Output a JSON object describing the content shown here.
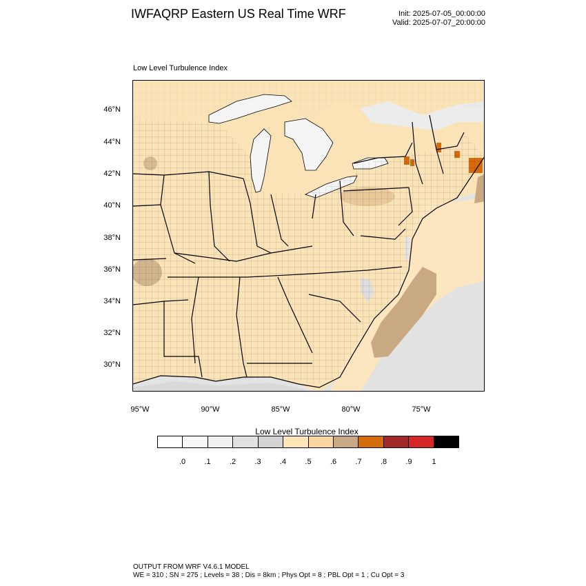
{
  "header": {
    "title": "IWFAQRP Eastern US Real Time WRF",
    "init": "Init: 2025-07-05_00:00:00",
    "valid": "Valid: 2025-07-07_20:00:00"
  },
  "map": {
    "label": "Low Level Turbulence Index",
    "lat_labels": [
      "46°N",
      "44°N",
      "42°N",
      "40°N",
      "38°N",
      "36°N",
      "34°N",
      "32°N",
      "30°N"
    ],
    "lon_labels": [
      "95°W",
      "90°W",
      "85°W",
      "80°W",
      "75°W"
    ],
    "colors": {
      "land": "#fbe3b8",
      "water_low": "#f5f5f5",
      "ocean": "#e0e0e0",
      "mid": "#c8a982",
      "high": "#d76a0a",
      "border": "#000000"
    }
  },
  "colorbar": {
    "title": "Low Level Turbulence Index",
    "labels": [
      ".0",
      ".1",
      ".2",
      ".3",
      ".4",
      ".5",
      ".6",
      ".7",
      ".8",
      ".9",
      "1"
    ],
    "colors": [
      "#ffffff",
      "#f8f8f8",
      "#f0f0f0",
      "#e1e1e1",
      "#d3d3d3",
      "#ffe5b7",
      "#fbd6a2",
      "#c9a985",
      "#d56c0a",
      "#a32a2a",
      "#d62728",
      "#000000"
    ]
  },
  "footer": {
    "line1": "OUTPUT FROM WRF V4.6.1 MODEL",
    "line2": "WE = 310 ; SN = 275 ; Levels = 38 ; Dis = 8km ; Phys Opt = 8 ; PBL Opt = 1 ; Cu Opt = 3"
  }
}
